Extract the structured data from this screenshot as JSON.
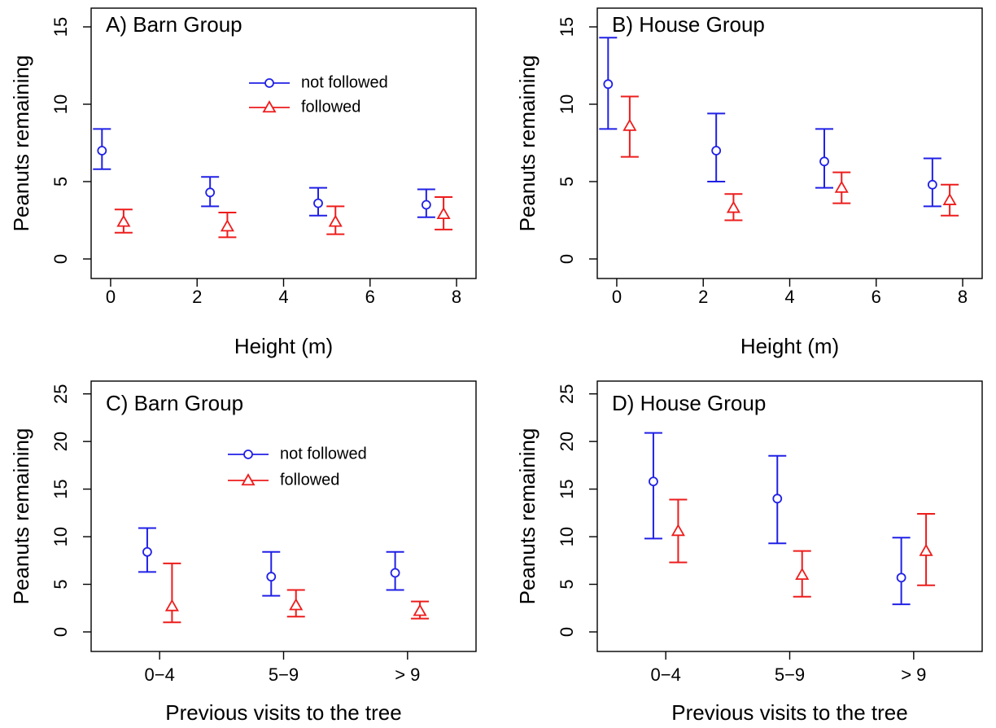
{
  "colors": {
    "not_followed": "#2020e6",
    "followed": "#ee1c1c"
  },
  "chart_data": [
    {
      "type": "scatter",
      "title": "A) Barn Group",
      "xlabel": "Height (m)",
      "ylabel": "Peanuts remaining",
      "xlim": [
        -0.3,
        8.3
      ],
      "ylim": [
        0,
        16
      ],
      "xticks": [
        "0",
        "2",
        "4",
        "6",
        "8"
      ],
      "yticks": [
        "0",
        "5",
        "10",
        "15"
      ],
      "legend": {
        "position": "top-center",
        "entries": [
          "not followed",
          "followed"
        ]
      },
      "series": [
        {
          "name": "not followed",
          "marker": "circle",
          "x": [
            -0.2,
            2.3,
            4.8,
            7.3
          ],
          "y": [
            7.0,
            4.3,
            3.6,
            3.5
          ],
          "lower": [
            5.8,
            3.4,
            2.8,
            2.7
          ],
          "upper": [
            8.4,
            5.3,
            4.6,
            4.5
          ]
        },
        {
          "name": "followed",
          "marker": "triangle",
          "x": [
            0.3,
            2.7,
            5.2,
            7.7
          ],
          "y": [
            2.4,
            2.1,
            2.4,
            2.9
          ],
          "lower": [
            1.7,
            1.4,
            1.6,
            1.9
          ],
          "upper": [
            3.2,
            3.0,
            3.4,
            4.0
          ]
        }
      ]
    },
    {
      "type": "scatter",
      "title": "B) House Group",
      "xlabel": "Height (m)",
      "ylabel": "Peanuts remaining",
      "xlim": [
        -0.3,
        8.3
      ],
      "ylim": [
        0,
        16
      ],
      "xticks": [
        "0",
        "2",
        "4",
        "6",
        "8"
      ],
      "yticks": [
        "0",
        "5",
        "10",
        "15"
      ],
      "series": [
        {
          "name": "not followed",
          "marker": "circle",
          "x": [
            -0.2,
            2.3,
            4.8,
            7.3
          ],
          "y": [
            11.3,
            7.0,
            6.3,
            4.8
          ],
          "lower": [
            8.4,
            5.0,
            4.6,
            3.4
          ],
          "upper": [
            14.3,
            9.4,
            8.4,
            6.5
          ]
        },
        {
          "name": "followed",
          "marker": "triangle",
          "x": [
            0.3,
            2.7,
            5.2,
            7.7
          ],
          "y": [
            8.6,
            3.3,
            4.6,
            3.8
          ],
          "lower": [
            6.6,
            2.5,
            3.6,
            2.8
          ],
          "upper": [
            10.5,
            4.2,
            5.6,
            4.8
          ]
        }
      ]
    },
    {
      "type": "scatter",
      "title": "C) Barn Group",
      "xlabel": "Previous visits to the tree",
      "ylabel": "Peanuts remaining",
      "xlim": [
        0.5,
        3.5
      ],
      "ylim": [
        0,
        26
      ],
      "categories": [
        "0−4",
        "5−9",
        "> 9"
      ],
      "yticks": [
        "0",
        "5",
        "10",
        "15",
        "20",
        "25"
      ],
      "legend": {
        "position": "top-center",
        "entries": [
          "not followed",
          "followed"
        ]
      },
      "series": [
        {
          "name": "not followed",
          "marker": "circle",
          "x": [
            0.9,
            1.9,
            2.9
          ],
          "y": [
            8.4,
            5.8,
            6.2
          ],
          "lower": [
            6.3,
            3.8,
            4.4
          ],
          "upper": [
            10.9,
            8.4,
            8.4
          ]
        },
        {
          "name": "followed",
          "marker": "triangle",
          "x": [
            1.1,
            2.1,
            3.1
          ],
          "y": [
            2.7,
            2.8,
            2.2
          ],
          "lower": [
            1.0,
            1.6,
            1.4
          ],
          "upper": [
            7.2,
            4.4,
            3.2
          ]
        }
      ]
    },
    {
      "type": "scatter",
      "title": "D) House Group",
      "xlabel": "Previous visits to the tree",
      "ylabel": "Peanuts remaining",
      "xlim": [
        0.5,
        3.5
      ],
      "ylim": [
        0,
        26
      ],
      "categories": [
        "0−4",
        "5−9",
        "> 9"
      ],
      "yticks": [
        "0",
        "5",
        "10",
        "15",
        "20",
        "25"
      ],
      "series": [
        {
          "name": "not followed",
          "marker": "circle",
          "x": [
            0.9,
            1.9,
            2.9
          ],
          "y": [
            15.8,
            14.0,
            5.7
          ],
          "lower": [
            9.8,
            9.3,
            2.9
          ],
          "upper": [
            20.9,
            18.5,
            9.9
          ]
        },
        {
          "name": "followed",
          "marker": "triangle",
          "x": [
            1.1,
            2.1,
            3.1
          ],
          "y": [
            10.6,
            6.0,
            8.5
          ],
          "lower": [
            7.3,
            3.7,
            4.9
          ],
          "upper": [
            13.9,
            8.5,
            12.4
          ]
        }
      ]
    }
  ]
}
